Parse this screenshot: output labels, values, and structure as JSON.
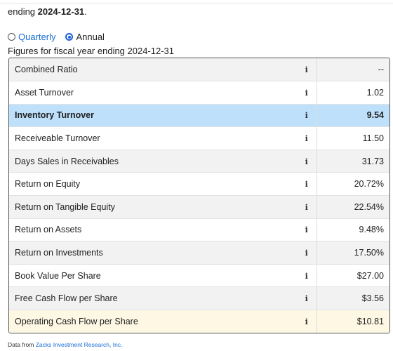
{
  "intro": {
    "prefix": "ending ",
    "date": "2024-12-31",
    "suffix": "."
  },
  "period": {
    "quarterly_label": "Quarterly",
    "annual_label": "Annual",
    "selected": "Annual"
  },
  "fiscal_caption": "Figures for fiscal year ending 2024-12-31",
  "rows": [
    {
      "label": "Combined Ratio",
      "value": "--",
      "style": "odd"
    },
    {
      "label": "Asset Turnover",
      "value": "1.02",
      "style": "even"
    },
    {
      "label": "Inventory Turnover",
      "value": "9.54",
      "style": "highlight-blue"
    },
    {
      "label": "Receiveable Turnover",
      "value": "11.50",
      "style": "even"
    },
    {
      "label": "Days Sales in Receivables",
      "value": "31.73",
      "style": "odd"
    },
    {
      "label": "Return on Equity",
      "value": "20.72%",
      "style": "even"
    },
    {
      "label": "Return on Tangible Equity",
      "value": "22.54%",
      "style": "odd"
    },
    {
      "label": "Return on Assets",
      "value": "9.48%",
      "style": "even"
    },
    {
      "label": "Return on Investments",
      "value": "17.50%",
      "style": "odd"
    },
    {
      "label": "Book Value Per Share",
      "value": "$27.00",
      "style": "even"
    },
    {
      "label": "Free Cash Flow per Share",
      "value": "$3.56",
      "style": "odd"
    },
    {
      "label": "Operating Cash Flow per Share",
      "value": "$10.81",
      "style": "highlight-yellow"
    }
  ],
  "info_glyph": "i",
  "footer": {
    "prefix": "Data from ",
    "link_text": "Zacks Investment Research, Inc."
  },
  "colors": {
    "link": "#1a6fd6",
    "highlight_blue": "#bfe0fb",
    "highlight_yellow": "#fdf7e3",
    "radio_selected": "#1a5fd6"
  }
}
